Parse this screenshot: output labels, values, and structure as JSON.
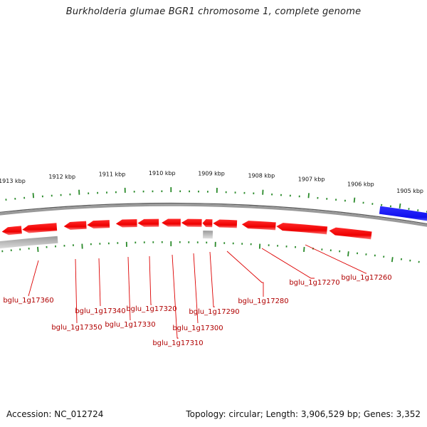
{
  "title": "Burkholderia glumae BGR1 chromosome 1, complete genome",
  "accession": "Accession: NC_012724",
  "summary": "Topology: circular; Length: 3,906,529 bp; Genes: 3,352",
  "colors": {
    "forward_gene": "#1010ee",
    "reverse_gene": "#ee0000",
    "other_feature": "#b8b8b8",
    "backbone": "#888888",
    "tick_minor": "#2a8a2a",
    "label_line": "#dd0000",
    "label_text": "#b00000"
  },
  "kbp_markers": [
    "1913 kbp",
    "1912 kbp",
    "1911 kbp",
    "1910 kbp",
    "1909 kbp",
    "1908 kbp",
    "1907 kbp",
    "1906 kbp",
    "1905 kbp"
  ],
  "gene_labels": [
    "bglu_1g17360",
    "bglu_1g17350",
    "bglu_1g17340",
    "bglu_1g17330",
    "bglu_1g17320",
    "bglu_1g17310",
    "bglu_1g17300",
    "bglu_1g17290",
    "bglu_1g17280",
    "bglu_1g17270",
    "bglu_1g17260"
  ]
}
